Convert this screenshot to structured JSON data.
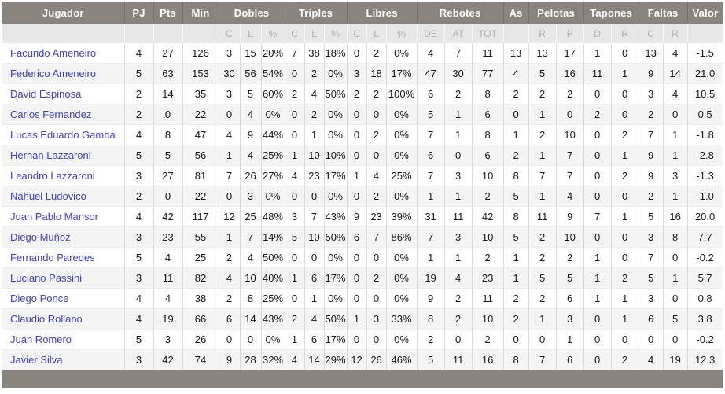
{
  "table": {
    "groups": [
      {
        "label": "Jugador",
        "span": 1
      },
      {
        "label": "PJ",
        "span": 1
      },
      {
        "label": "Pts",
        "span": 1
      },
      {
        "label": "Min",
        "span": 1
      },
      {
        "label": "Dobles",
        "span": 3
      },
      {
        "label": "Triples",
        "span": 3
      },
      {
        "label": "Libres",
        "span": 3
      },
      {
        "label": "Rebotes",
        "span": 3
      },
      {
        "label": "As",
        "span": 1
      },
      {
        "label": "Pelotas",
        "span": 2
      },
      {
        "label": "Tapones",
        "span": 2
      },
      {
        "label": "Faltas",
        "span": 2
      },
      {
        "label": "Valor",
        "span": 1
      }
    ],
    "subheaders": [
      "",
      "",
      "",
      "",
      "C",
      "L",
      "%",
      "C",
      "L",
      "%",
      "C",
      "L",
      "%",
      "DE",
      "AT",
      "TOT",
      "",
      "R",
      "P",
      "D",
      "R",
      "C",
      "R",
      ""
    ],
    "rows": [
      {
        "player": "Facundo Ameneiro",
        "stats": [
          "4",
          "27",
          "126",
          "3",
          "15",
          "20%",
          "7",
          "38",
          "18%",
          "0",
          "2",
          "0%",
          "4",
          "7",
          "11",
          "13",
          "13",
          "17",
          "1",
          "0",
          "13",
          "4",
          "-1.5"
        ]
      },
      {
        "player": "Federico Ameneiro",
        "stats": [
          "5",
          "63",
          "153",
          "30",
          "56",
          "54%",
          "0",
          "2",
          "0%",
          "3",
          "18",
          "17%",
          "47",
          "30",
          "77",
          "4",
          "5",
          "16",
          "11",
          "1",
          "9",
          "14",
          "21.0"
        ]
      },
      {
        "player": "David Espinosa",
        "stats": [
          "2",
          "14",
          "35",
          "3",
          "5",
          "60%",
          "2",
          "4",
          "50%",
          "2",
          "2",
          "100%",
          "6",
          "2",
          "8",
          "2",
          "2",
          "2",
          "0",
          "0",
          "3",
          "4",
          "10.5"
        ]
      },
      {
        "player": "Carlos Fernandez",
        "stats": [
          "2",
          "0",
          "22",
          "0",
          "4",
          "0%",
          "0",
          "2",
          "0%",
          "0",
          "0",
          "0%",
          "5",
          "1",
          "6",
          "0",
          "1",
          "0",
          "2",
          "0",
          "2",
          "0",
          "0.5"
        ]
      },
      {
        "player": "Lucas Eduardo Gamba",
        "stats": [
          "4",
          "8",
          "47",
          "4",
          "9",
          "44%",
          "0",
          "1",
          "0%",
          "0",
          "2",
          "0%",
          "7",
          "1",
          "8",
          "1",
          "2",
          "10",
          "0",
          "2",
          "7",
          "1",
          "-1.8"
        ]
      },
      {
        "player": "Hernan Lazzaroni",
        "stats": [
          "5",
          "5",
          "56",
          "1",
          "4",
          "25%",
          "1",
          "10",
          "10%",
          "0",
          "0",
          "0%",
          "6",
          "0",
          "6",
          "2",
          "1",
          "7",
          "0",
          "1",
          "9",
          "1",
          "-2.8"
        ]
      },
      {
        "player": "Leandro Lazzaroni",
        "stats": [
          "3",
          "27",
          "81",
          "7",
          "26",
          "27%",
          "4",
          "23",
          "17%",
          "1",
          "4",
          "25%",
          "7",
          "3",
          "10",
          "8",
          "7",
          "7",
          "0",
          "2",
          "9",
          "3",
          "-1.3"
        ]
      },
      {
        "player": "Nahuel Ludovico",
        "stats": [
          "2",
          "0",
          "22",
          "0",
          "3",
          "0%",
          "0",
          "0",
          "0%",
          "0",
          "2",
          "0%",
          "1",
          "1",
          "2",
          "5",
          "1",
          "4",
          "0",
          "0",
          "2",
          "1",
          "-1.0"
        ]
      },
      {
        "player": "Juan Pablo Mansor",
        "stats": [
          "4",
          "42",
          "117",
          "12",
          "25",
          "48%",
          "3",
          "7",
          "43%",
          "9",
          "23",
          "39%",
          "31",
          "11",
          "42",
          "8",
          "11",
          "9",
          "7",
          "1",
          "5",
          "16",
          "20.0"
        ]
      },
      {
        "player": "Diego Muñoz",
        "stats": [
          "3",
          "23",
          "55",
          "1",
          "7",
          "14%",
          "5",
          "10",
          "50%",
          "6",
          "7",
          "86%",
          "7",
          "3",
          "10",
          "5",
          "2",
          "10",
          "0",
          "0",
          "3",
          "8",
          "7.7"
        ]
      },
      {
        "player": "Fernando Paredes",
        "stats": [
          "5",
          "4",
          "25",
          "2",
          "4",
          "50%",
          "0",
          "0",
          "0%",
          "0",
          "0",
          "0%",
          "1",
          "1",
          "2",
          "1",
          "2",
          "2",
          "1",
          "0",
          "7",
          "0",
          "-0.2"
        ]
      },
      {
        "player": "Luciano Passini",
        "stats": [
          "3",
          "11",
          "82",
          "4",
          "10",
          "40%",
          "1",
          "6",
          "17%",
          "0",
          "2",
          "0%",
          "19",
          "4",
          "23",
          "1",
          "5",
          "5",
          "1",
          "2",
          "5",
          "1",
          "5.7"
        ]
      },
      {
        "player": "Diego Ponce",
        "stats": [
          "4",
          "4",
          "38",
          "2",
          "8",
          "25%",
          "0",
          "1",
          "0%",
          "0",
          "0",
          "0%",
          "9",
          "2",
          "11",
          "2",
          "2",
          "6",
          "1",
          "1",
          "3",
          "0",
          "0.8"
        ]
      },
      {
        "player": "Claudio Rollano",
        "stats": [
          "4",
          "19",
          "66",
          "6",
          "14",
          "43%",
          "2",
          "4",
          "50%",
          "1",
          "3",
          "33%",
          "8",
          "2",
          "10",
          "2",
          "1",
          "3",
          "0",
          "1",
          "6",
          "5",
          "3.8"
        ]
      },
      {
        "player": "Juan Romero",
        "stats": [
          "5",
          "3",
          "26",
          "0",
          "0",
          "0%",
          "1",
          "6",
          "17%",
          "0",
          "0",
          "0%",
          "2",
          "0",
          "2",
          "0",
          "0",
          "1",
          "0",
          "0",
          "0",
          "0",
          "-0.2"
        ]
      },
      {
        "player": "Javier Silva",
        "stats": [
          "3",
          "42",
          "74",
          "9",
          "28",
          "32%",
          "4",
          "14",
          "29%",
          "12",
          "26",
          "46%",
          "5",
          "11",
          "16",
          "8",
          "7",
          "6",
          "0",
          "2",
          "4",
          "19",
          "12.3"
        ]
      }
    ]
  },
  "colors": {
    "header_bg": "#8A8480",
    "header_text": "#FFFFFF",
    "subheader_bg": "#E7E7E7",
    "subheader_text": "#B2AEAC",
    "row_alt_bg": "#F4F4F4",
    "cell_border": "#D9D9D9",
    "player_link": "#3F3FCB"
  }
}
